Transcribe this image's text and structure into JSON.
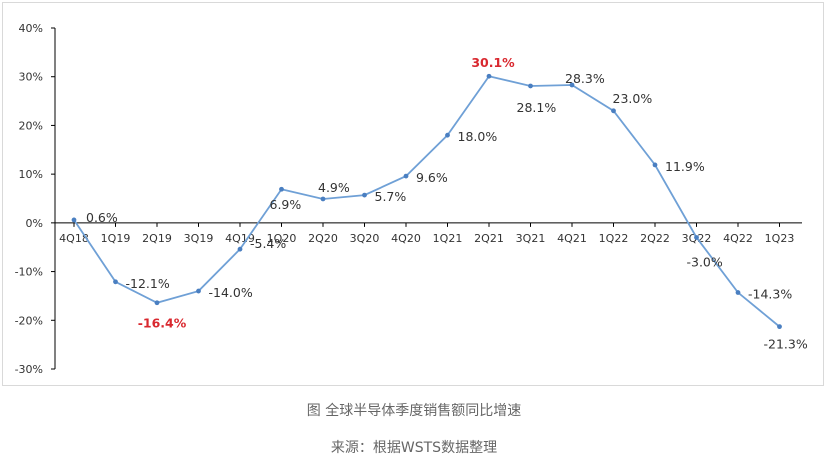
{
  "chart_data": {
    "type": "line",
    "categories": [
      "4Q18",
      "1Q19",
      "2Q19",
      "3Q19",
      "4Q19",
      "1Q20",
      "2Q20",
      "3Q20",
      "4Q20",
      "1Q21",
      "2Q21",
      "3Q21",
      "4Q21",
      "1Q22",
      "2Q22",
      "3Q22",
      "4Q22",
      "1Q23"
    ],
    "series": [
      {
        "values": [
          0.6,
          -12.1,
          -16.4,
          -14.0,
          -5.4,
          6.9,
          4.9,
          5.7,
          9.6,
          18.0,
          30.1,
          28.1,
          28.3,
          23.0,
          11.9,
          -3.0,
          -14.3,
          -21.3
        ]
      }
    ],
    "data_labels": [
      "0.6%",
      "-12.1%",
      "-16.4%",
      "-14.0%",
      "-5.4%",
      "6.9%",
      "4.9%",
      "5.7%",
      "9.6%",
      "18.0%",
      "30.1%",
      "28.1%",
      "28.3%",
      "23.0%",
      "11.9%",
      "-3.0%",
      "-14.3%",
      "-21.3%"
    ],
    "highlighted_indices": [
      2,
      10
    ],
    "yticks": [
      "40%",
      "30%",
      "20%",
      "10%",
      "0%",
      "-10%",
      "-20%",
      "-30%"
    ],
    "ylim": [
      -30,
      40
    ],
    "grid": false,
    "legend": "none",
    "colors": {
      "line": "#6fa0d6",
      "marker": "#4a7fc1",
      "highlight": "#d9282f",
      "text": "#333333",
      "axis": "#000000"
    }
  },
  "caption": {
    "title": "图 全球半导体季度销售额同比增速",
    "source": "来源：根据WSTS数据整理"
  }
}
